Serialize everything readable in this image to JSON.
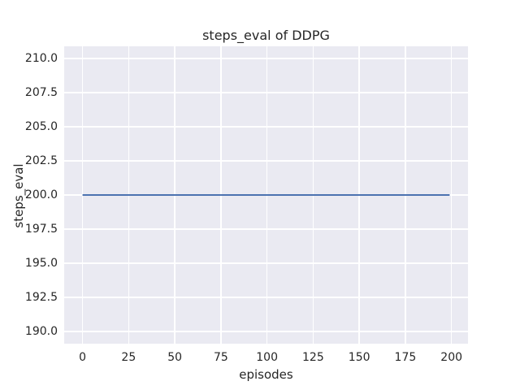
{
  "chart_data": {
    "type": "line",
    "title": "steps_eval of DDPG",
    "xlabel": "episodes",
    "ylabel": "steps_eval",
    "xlim": [
      -9.95,
      208.95
    ],
    "ylim": [
      189.1,
      210.9
    ],
    "xticks": [
      0,
      25,
      50,
      75,
      100,
      125,
      150,
      175,
      200
    ],
    "xtick_labels": [
      "0",
      "25",
      "50",
      "75",
      "100",
      "125",
      "150",
      "175",
      "200"
    ],
    "yticks": [
      190.0,
      192.5,
      195.0,
      197.5,
      200.0,
      202.5,
      205.0,
      207.5,
      210.0
    ],
    "ytick_labels": [
      "190.0",
      "192.5",
      "195.0",
      "197.5",
      "200.0",
      "202.5",
      "205.0",
      "207.5",
      "210.0"
    ],
    "grid": true,
    "legend": "none",
    "series": [
      {
        "name": "steps_eval",
        "color": "#4c72b0",
        "x": [
          0,
          199
        ],
        "y": [
          200,
          200
        ]
      }
    ],
    "style": {
      "figure_bg": "#ffffff",
      "axes_bg": "#eaeaf2",
      "grid_color": "#ffffff",
      "text_color": "#262626",
      "line_width": 2
    }
  }
}
